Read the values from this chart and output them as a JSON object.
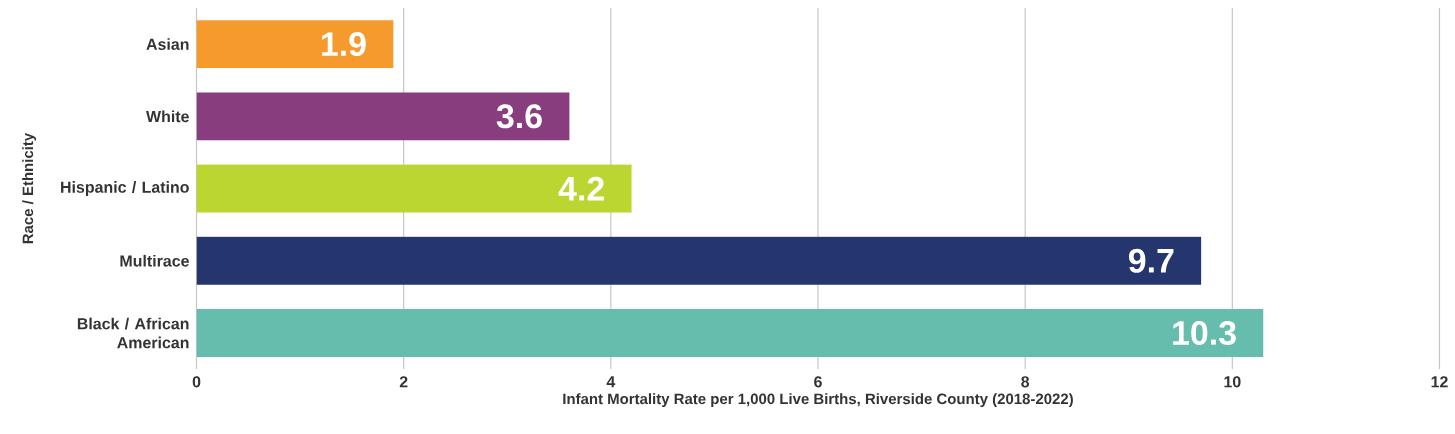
{
  "chart_data": {
    "type": "bar",
    "orientation": "horizontal",
    "xlabel": "Infant Mortality Rate per 1,000 Live Births, Riverside County (2018-2022)",
    "ylabel": "Race / Ethnicity",
    "categories": [
      "Asian",
      "White",
      "Hispanic / Latino",
      "Multirace",
      "Black / African American"
    ],
    "values": [
      1.9,
      3.6,
      4.2,
      9.7,
      10.3
    ],
    "colors": [
      "#f79a2e",
      "#873d7e",
      "#bcd631",
      "#25356e",
      "#67bdad"
    ],
    "xlim": [
      0,
      12
    ],
    "xticks": [
      0,
      2,
      4,
      6,
      8,
      10,
      12
    ],
    "grid": "x",
    "data_labels": true
  }
}
